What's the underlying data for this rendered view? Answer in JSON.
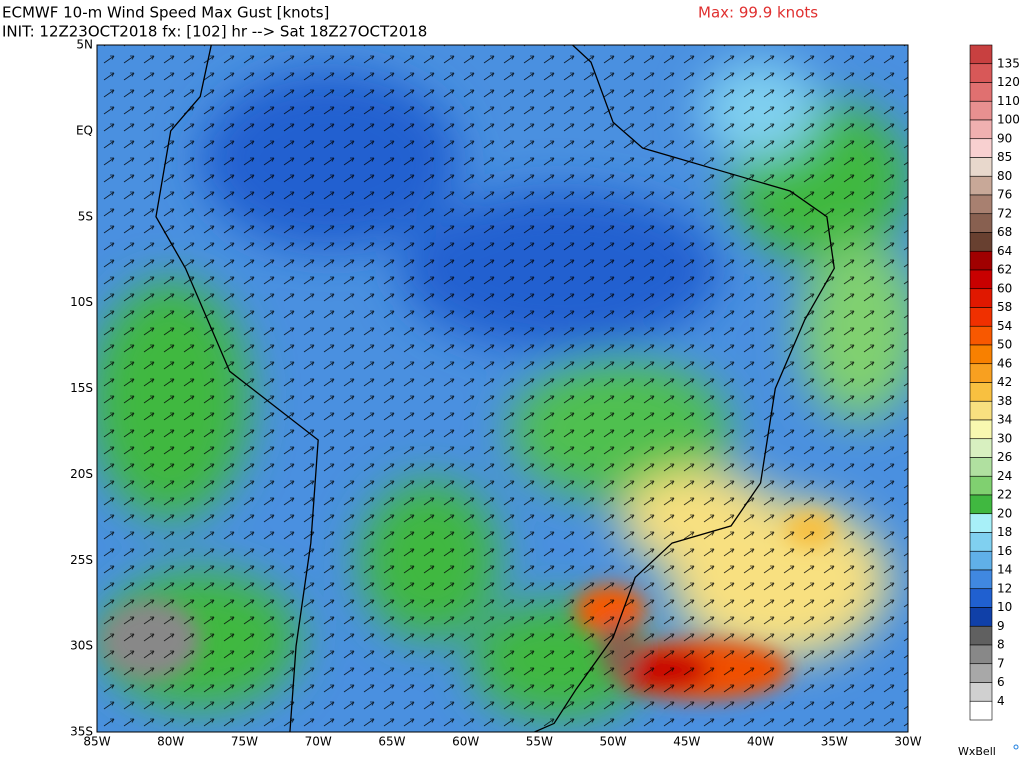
{
  "header": {
    "title": "ECMWF 10-m Wind Speed Max Gust [knots]",
    "init": "INIT: 12Z23OCT2018 fx: [102] hr --> Sat 18Z27OCT2018",
    "max": "Max: 99.9 knots"
  },
  "map": {
    "lat_labels": [
      "5N",
      "EQ",
      "5S",
      "10S",
      "15S",
      "20S",
      "25S",
      "30S",
      "35S"
    ],
    "lon_labels": [
      "85W",
      "80W",
      "75W",
      "70W",
      "65W",
      "60W",
      "55W",
      "50W",
      "45W",
      "40W",
      "35W",
      "30W"
    ]
  },
  "colorbar": {
    "labels": [
      "135",
      "120",
      "110",
      "100",
      "90",
      "85",
      "80",
      "76",
      "72",
      "68",
      "64",
      "62",
      "60",
      "58",
      "54",
      "50",
      "46",
      "42",
      "38",
      "34",
      "30",
      "26",
      "24",
      "22",
      "20",
      "18",
      "16",
      "14",
      "12",
      "10",
      "9",
      "8",
      "7",
      "6",
      "4"
    ],
    "colors": [
      "#c84040",
      "#d85858",
      "#e07070",
      "#e89090",
      "#f0b0b0",
      "#f8d0d0",
      "#e8d8cc",
      "#c8a898",
      "#a88070",
      "#886050",
      "#684030",
      "#a00000",
      "#c80000",
      "#e01800",
      "#f03000",
      "#f85800",
      "#f88000",
      "#f8a020",
      "#f8c040",
      "#f8e080",
      "#f8f8b0",
      "#d8f0c0",
      "#b0e0a0",
      "#80d070",
      "#40b840",
      "#a8f0f8",
      "#80d0f0",
      "#60b0e8",
      "#4088e0",
      "#2060d0",
      "#1040a8",
      "#606060",
      "#888888",
      "#a8a8a8",
      "#d0d0d0",
      "#ffffff"
    ]
  },
  "brand": "WxBell"
}
